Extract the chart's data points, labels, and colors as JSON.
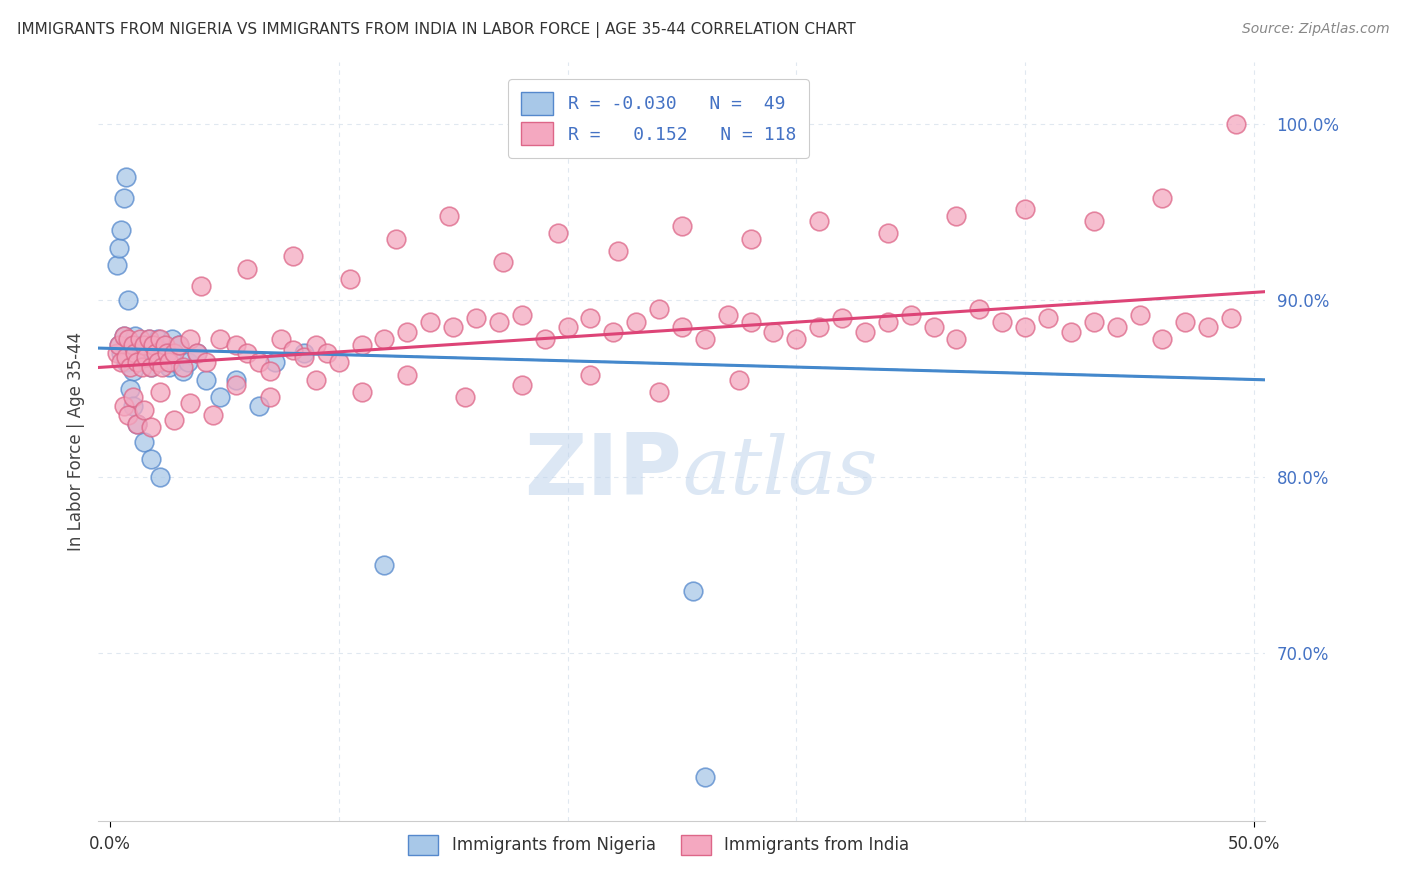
{
  "title": "IMMIGRANTS FROM NIGERIA VS IMMIGRANTS FROM INDIA IN LABOR FORCE | AGE 35-44 CORRELATION CHART",
  "source": "Source: ZipAtlas.com",
  "ylabel": "In Labor Force | Age 35-44",
  "nigeria_color": "#a8c8e8",
  "india_color": "#f4a8c0",
  "nigeria_edge": "#5588cc",
  "india_edge": "#dd6688",
  "nigeria_trend_color": "#4488cc",
  "india_trend_color": "#dd4477",
  "nigeria_R": -0.03,
  "nigeria_N": 49,
  "india_R": 0.152,
  "india_N": 118,
  "watermark_color": "#c0d4ec",
  "background_color": "#ffffff",
  "grid_color": "#e0e8f0",
  "xlim": [
    -0.005,
    0.505
  ],
  "ylim": [
    0.605,
    1.035
  ],
  "ytick_vals": [
    0.7,
    0.8,
    0.9,
    1.0
  ],
  "ytick_labels": [
    "70.0%",
    "80.0%",
    "90.0%",
    "100.0%"
  ],
  "nigeria_pts_x": [
    0.004,
    0.005,
    0.006,
    0.007,
    0.008,
    0.009,
    0.01,
    0.011,
    0.012,
    0.013,
    0.014,
    0.015,
    0.016,
    0.017,
    0.018,
    0.019,
    0.02,
    0.021,
    0.022,
    0.023,
    0.025,
    0.026,
    0.027,
    0.028,
    0.03,
    0.032,
    0.034,
    0.038,
    0.042,
    0.048,
    0.003,
    0.004,
    0.005,
    0.006,
    0.007,
    0.008,
    0.009,
    0.01,
    0.012,
    0.015,
    0.018,
    0.022,
    0.055,
    0.065,
    0.072,
    0.085,
    0.12,
    0.255,
    0.26
  ],
  "nigeria_pts_y": [
    0.875,
    0.87,
    0.88,
    0.865,
    0.87,
    0.875,
    0.86,
    0.88,
    0.872,
    0.868,
    0.875,
    0.87,
    0.865,
    0.878,
    0.862,
    0.875,
    0.868,
    0.878,
    0.872,
    0.865,
    0.87,
    0.862,
    0.878,
    0.865,
    0.875,
    0.86,
    0.865,
    0.87,
    0.855,
    0.845,
    0.92,
    0.93,
    0.94,
    0.958,
    0.97,
    0.9,
    0.85,
    0.84,
    0.83,
    0.82,
    0.81,
    0.8,
    0.855,
    0.84,
    0.865,
    0.87,
    0.75,
    0.735,
    0.63
  ],
  "india_pts_x": [
    0.003,
    0.004,
    0.005,
    0.006,
    0.007,
    0.008,
    0.009,
    0.01,
    0.011,
    0.012,
    0.013,
    0.014,
    0.015,
    0.016,
    0.017,
    0.018,
    0.019,
    0.02,
    0.021,
    0.022,
    0.023,
    0.024,
    0.025,
    0.026,
    0.028,
    0.03,
    0.032,
    0.035,
    0.038,
    0.042,
    0.048,
    0.055,
    0.06,
    0.065,
    0.07,
    0.075,
    0.08,
    0.085,
    0.09,
    0.095,
    0.1,
    0.11,
    0.12,
    0.13,
    0.14,
    0.15,
    0.16,
    0.17,
    0.18,
    0.19,
    0.2,
    0.21,
    0.22,
    0.23,
    0.24,
    0.25,
    0.26,
    0.27,
    0.28,
    0.29,
    0.3,
    0.31,
    0.32,
    0.33,
    0.34,
    0.35,
    0.36,
    0.37,
    0.38,
    0.39,
    0.4,
    0.41,
    0.42,
    0.43,
    0.44,
    0.45,
    0.46,
    0.47,
    0.48,
    0.49,
    0.006,
    0.008,
    0.01,
    0.012,
    0.015,
    0.018,
    0.022,
    0.028,
    0.035,
    0.045,
    0.055,
    0.07,
    0.09,
    0.11,
    0.13,
    0.155,
    0.18,
    0.21,
    0.24,
    0.275,
    0.04,
    0.06,
    0.08,
    0.105,
    0.125,
    0.148,
    0.172,
    0.196,
    0.222,
    0.25,
    0.28,
    0.31,
    0.34,
    0.37,
    0.4,
    0.43,
    0.46,
    0.492
  ],
  "india_pts_y": [
    0.87,
    0.875,
    0.865,
    0.88,
    0.868,
    0.878,
    0.862,
    0.875,
    0.87,
    0.865,
    0.878,
    0.862,
    0.875,
    0.868,
    0.878,
    0.862,
    0.875,
    0.87,
    0.865,
    0.878,
    0.862,
    0.875,
    0.87,
    0.865,
    0.87,
    0.875,
    0.862,
    0.878,
    0.87,
    0.865,
    0.878,
    0.875,
    0.87,
    0.865,
    0.86,
    0.878,
    0.872,
    0.868,
    0.875,
    0.87,
    0.865,
    0.875,
    0.878,
    0.882,
    0.888,
    0.885,
    0.89,
    0.888,
    0.892,
    0.878,
    0.885,
    0.89,
    0.882,
    0.888,
    0.895,
    0.885,
    0.878,
    0.892,
    0.888,
    0.882,
    0.878,
    0.885,
    0.89,
    0.882,
    0.888,
    0.892,
    0.885,
    0.878,
    0.895,
    0.888,
    0.885,
    0.89,
    0.882,
    0.888,
    0.885,
    0.892,
    0.878,
    0.888,
    0.885,
    0.89,
    0.84,
    0.835,
    0.845,
    0.83,
    0.838,
    0.828,
    0.848,
    0.832,
    0.842,
    0.835,
    0.852,
    0.845,
    0.855,
    0.848,
    0.858,
    0.845,
    0.852,
    0.858,
    0.848,
    0.855,
    0.908,
    0.918,
    0.925,
    0.912,
    0.935,
    0.948,
    0.922,
    0.938,
    0.928,
    0.942,
    0.935,
    0.945,
    0.938,
    0.948,
    0.952,
    0.945,
    0.958,
    1.0
  ],
  "nig_trend_x0": -0.005,
  "nig_trend_x1": 0.505,
  "nig_trend_y0": 0.873,
  "nig_trend_y1": 0.855,
  "ind_trend_x0": -0.005,
  "ind_trend_x1": 0.505,
  "ind_trend_y0": 0.862,
  "ind_trend_y1": 0.905
}
